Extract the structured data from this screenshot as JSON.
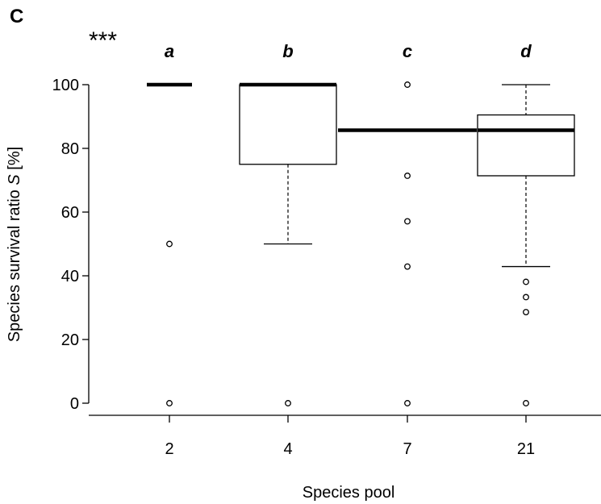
{
  "chart_data": {
    "type": "box",
    "panel_label": "C",
    "significance": "***",
    "xlabel": "Species pool",
    "ylabel_prefix": "Species survival ratio ",
    "ylabel_italic": "S",
    "ylabel_suffix": " [%]",
    "ylim": [
      0,
      100
    ],
    "yticks": [
      0,
      20,
      40,
      60,
      80,
      100
    ],
    "categories": [
      "2",
      "4",
      "7",
      "21"
    ],
    "groups": [
      {
        "category": "2",
        "letter": "a",
        "min": 100,
        "q1": 100,
        "median": 100,
        "q3": 100,
        "max": 100,
        "outliers": [
          50,
          0
        ]
      },
      {
        "category": "4",
        "letter": "b",
        "min": 50,
        "q1": 75,
        "median": 100,
        "q3": 100,
        "max": 100,
        "outliers": [
          0
        ]
      },
      {
        "category": "7",
        "letter": "c",
        "min": 85.7,
        "q1": 85.7,
        "median": 85.7,
        "q3": 85.7,
        "max": 85.7,
        "outliers": [
          100,
          71.4,
          57.1,
          42.9,
          0
        ]
      },
      {
        "category": "21",
        "letter": "d",
        "min": 42.9,
        "q1": 71.4,
        "median": 85.7,
        "q3": 90.5,
        "max": 100,
        "outliers": [
          38.1,
          33.3,
          28.6,
          0
        ]
      }
    ]
  }
}
